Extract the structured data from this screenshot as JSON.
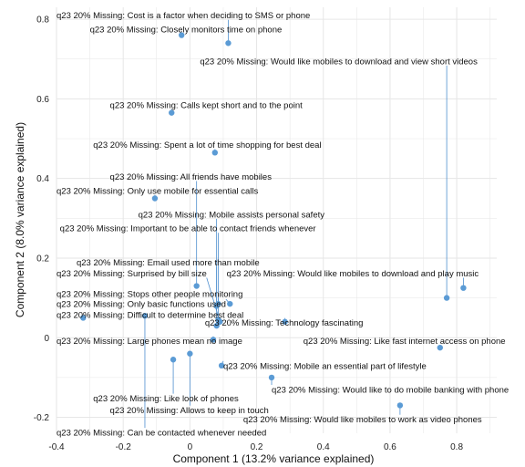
{
  "chart_data": {
    "type": "scatter",
    "xlabel": "Component 1 (13.2% variance explained)",
    "ylabel": "Component 2 (8.0% variance explained)",
    "xlim": [
      -0.4,
      0.92
    ],
    "ylim": [
      -0.24,
      0.83
    ],
    "xticks": [
      -0.4,
      -0.2,
      0,
      0.2,
      0.4,
      0.6,
      0.8
    ],
    "yticks": [
      -0.2,
      0,
      0.2,
      0.4,
      0.6,
      0.8
    ],
    "grid": true,
    "colors": {
      "point": "#5b9bd5",
      "leader": "#4f8fcf",
      "grid": "#e6e6e6"
    },
    "points": [
      {
        "label": "q23 20% Missing: Cost is a factor when deciding to SMS or phone",
        "x": 0.115,
        "y": 0.74,
        "label_x": -0.4,
        "label_y": 0.81
      },
      {
        "label": "q23 20% Missing: Closely monitors time on phone",
        "x": -0.025,
        "y": 0.76,
        "label_x": -0.3,
        "label_y": 0.775
      },
      {
        "label": "q23 20% Missing: Would like mobiles to download and view short videos",
        "x": 0.77,
        "y": 0.1,
        "label_x": 0.03,
        "label_y": 0.695
      },
      {
        "label": "q23 20% Missing: Calls kept short and to the point",
        "x": -0.055,
        "y": 0.565,
        "label_x": -0.24,
        "label_y": 0.585
      },
      {
        "label": "q23 20% Missing: Spent a lot of time shopping for best deal",
        "x": 0.075,
        "y": 0.465,
        "label_x": -0.29,
        "label_y": 0.485
      },
      {
        "label": "q23 20% Missing: All friends have mobiles",
        "x": 0.02,
        "y": 0.13,
        "label_x": -0.24,
        "label_y": 0.405
      },
      {
        "label": "q23 20% Missing: Only use mobile for essential calls",
        "x": -0.105,
        "y": 0.35,
        "label_x": -0.4,
        "label_y": 0.37
      },
      {
        "label": "q23 20% Missing: Mobile assists personal safety",
        "x": 0.08,
        "y": 0.08,
        "label_x": -0.155,
        "label_y": 0.31
      },
      {
        "label": "q23 20% Missing: Important to be able to contact friends whenever",
        "x": 0.085,
        "y": 0.085,
        "label_x": -0.39,
        "label_y": 0.275
      },
      {
        "label": "q23 20% Missing: Email used more than mobile",
        "x": 0.08,
        "y": 0.03,
        "label_x": -0.34,
        "label_y": 0.19
      },
      {
        "label": "q23 20% Missing: Surprised by bill size",
        "x": 0.09,
        "y": 0.04,
        "label_x": -0.4,
        "label_y": 0.162
      },
      {
        "label": "q23 20% Missing: Would like mobiles to download and play music",
        "x": 0.82,
        "y": 0.125,
        "label_x": 0.11,
        "label_y": 0.162
      },
      {
        "label": "q23 20% Missing: Stops other people monitoring",
        "x": 0.085,
        "y": 0.045,
        "label_x": -0.4,
        "label_y": 0.11
      },
      {
        "label": "q23 20% Missing: Only basic functions used",
        "x": 0.12,
        "y": 0.085,
        "label_x": -0.4,
        "label_y": 0.085
      },
      {
        "label": "q23 20% Missing: Difficult to determine best deal",
        "x": -0.32,
        "y": 0.05,
        "label_x": -0.4,
        "label_y": 0.058
      },
      {
        "label": "q23 20% Missing: Technology fascinating",
        "x": 0.285,
        "y": 0.04,
        "label_x": 0.045,
        "label_y": 0.038
      },
      {
        "label": "q23 20% Missing: Large phones mean no image",
        "x": 0.07,
        "y": -0.005,
        "label_x": -0.4,
        "label_y": -0.008
      },
      {
        "label": "q23 20% Missing: Like fast internet access on phone",
        "x": 0.75,
        "y": -0.025,
        "label_x": 0.34,
        "label_y": -0.008
      },
      {
        "label": "q23 20% Missing: Mobile an essential part of lifestyle",
        "x": 0.095,
        "y": -0.07,
        "label_x": 0.1,
        "label_y": -0.07
      },
      {
        "label": "q23 20% Missing: Would like to do mobile banking with phone",
        "x": 0.245,
        "y": -0.1,
        "label_x": 0.245,
        "label_y": -0.13
      },
      {
        "label": "q23 20% Missing: Like look of phones",
        "x": -0.05,
        "y": -0.055,
        "label_x": -0.29,
        "label_y": -0.152
      },
      {
        "label": "q23 20% Missing: Allows to keep in touch",
        "x": 0.0,
        "y": -0.04,
        "label_x": -0.24,
        "label_y": -0.182
      },
      {
        "label": "q23 20% Missing: Would like mobiles to work as video phones",
        "x": 0.63,
        "y": -0.17,
        "label_x": 0.16,
        "label_y": -0.205
      },
      {
        "label": "q23 20% Missing: Can be contacted whenever needed",
        "x": -0.135,
        "y": 0.055,
        "label_x": -0.4,
        "label_y": -0.238
      }
    ]
  }
}
